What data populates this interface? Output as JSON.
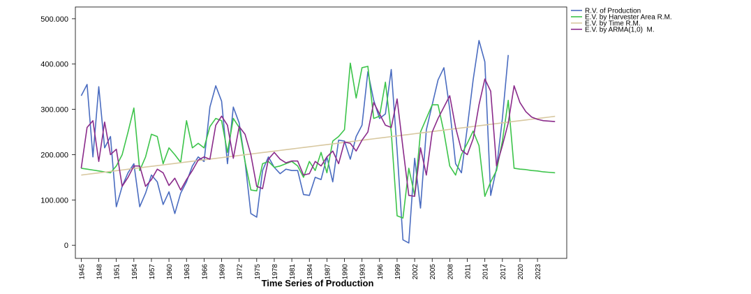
{
  "chart_data": {
    "type": "line",
    "x_label": "Time Series of Production",
    "x": [
      1945,
      1946,
      1947,
      1948,
      1949,
      1950,
      1951,
      1952,
      1953,
      1954,
      1955,
      1956,
      1957,
      1958,
      1959,
      1960,
      1961,
      1962,
      1963,
      1964,
      1965,
      1966,
      1967,
      1968,
      1969,
      1970,
      1971,
      1972,
      1973,
      1974,
      1975,
      1976,
      1977,
      1978,
      1979,
      1980,
      1981,
      1982,
      1983,
      1984,
      1985,
      1986,
      1987,
      1988,
      1989,
      1990,
      1991,
      1992,
      1993,
      1994,
      1995,
      1996,
      1997,
      1998,
      1999,
      2000,
      2001,
      2002,
      2003,
      2004,
      2005,
      2006,
      2007,
      2008,
      2009,
      2010,
      2011,
      2012,
      2013,
      2014,
      2015,
      2016,
      2017,
      2018,
      2019,
      2020,
      2021,
      2022,
      2023,
      2024,
      2025,
      2026
    ],
    "xlim": [
      1944,
      2028
    ],
    "xticks": [
      1945,
      1948,
      1951,
      1954,
      1957,
      1960,
      1963,
      1966,
      1969,
      1972,
      1975,
      1978,
      1981,
      1984,
      1987,
      1990,
      1993,
      1996,
      1999,
      2002,
      2005,
      2008,
      2011,
      2014,
      2017,
      2020,
      2023
    ],
    "ylim": [
      -29,
      526
    ],
    "yticks": [
      0,
      {
        "value": 100,
        "label": "100.000"
      },
      {
        "value": 200,
        "label": "200.000"
      },
      {
        "value": 300,
        "label": "300.000"
      },
      {
        "value": 400,
        "label": "400.000"
      },
      {
        "value": 500,
        "label": "500.000"
      }
    ],
    "grid": false,
    "legend": "outside-top-right",
    "series": [
      {
        "name": "R.V. of Production",
        "color": "#4a6cc0",
        "values": [
          330,
          355,
          195,
          350,
          215,
          240,
          85,
          130,
          160,
          180,
          85,
          115,
          155,
          140,
          90,
          118,
          70,
          115,
          140,
          175,
          195,
          185,
          305,
          352,
          318,
          180,
          305,
          270,
          185,
          70,
          62,
          165,
          195,
          172,
          158,
          168,
          165,
          165,
          112,
          110,
          150,
          145,
          195,
          140,
          232,
          230,
          190,
          240,
          265,
          383,
          320,
          280,
          290,
          388,
          210,
          12,
          5,
          192,
          82,
          255,
          310,
          365,
          392,
          300,
          180,
          160,
          260,
          365,
          452,
          405,
          110,
          170,
          280,
          420,
          null,
          null,
          null,
          null,
          null,
          null,
          null,
          null
        ]
      },
      {
        "name": "E.V. by Harvester Area R.M.",
        "color": "#3cc44a",
        "values": [
          170,
          168,
          166,
          164,
          162,
          160,
          175,
          200,
          250,
          303,
          165,
          195,
          245,
          240,
          180,
          215,
          200,
          183,
          275,
          215,
          225,
          215,
          262,
          280,
          275,
          205,
          280,
          260,
          185,
          122,
          120,
          180,
          185,
          172,
          175,
          180,
          185,
          175,
          150,
          185,
          165,
          205,
          160,
          230,
          240,
          255,
          402,
          325,
          392,
          395,
          280,
          285,
          360,
          250,
          65,
          60,
          170,
          110,
          250,
          280,
          310,
          310,
          250,
          175,
          155,
          200,
          225,
          252,
          220,
          108,
          140,
          165,
          230,
          320,
          170,
          168,
          167,
          165,
          164,
          162,
          161,
          160
        ]
      },
      {
        "name": "E.V. by Time R.M.",
        "color": "#d8c8a0",
        "values": [
          155,
          156.6,
          158.2,
          159.8,
          161.4,
          163,
          164.6,
          166.2,
          167.8,
          169.4,
          171,
          172.6,
          174.2,
          175.8,
          177.4,
          179,
          180.6,
          182.2,
          183.8,
          185.4,
          187,
          188.6,
          190.2,
          191.8,
          193.4,
          195,
          196.6,
          198.2,
          199.8,
          201.4,
          203,
          204.6,
          206.2,
          207.8,
          209.4,
          211,
          212.6,
          214.2,
          215.8,
          217.4,
          219,
          220.6,
          222.2,
          223.8,
          225.4,
          227,
          228.6,
          230.2,
          231.8,
          233.4,
          235,
          236.6,
          238.2,
          239.8,
          241.4,
          243,
          244.6,
          246.2,
          247.8,
          249.4,
          251,
          252.6,
          254.2,
          255.8,
          257.4,
          259,
          260.6,
          262.2,
          263.8,
          265.4,
          267,
          268.6,
          270.2,
          271.8,
          273.4,
          275,
          276.6,
          278.2,
          279.8,
          281.4,
          283,
          284.6
        ]
      },
      {
        "name": "E.V. by ARMA(1,0)  M.",
        "color": "#8a2a8a",
        "values": [
          170,
          260,
          275,
          185,
          272,
          200,
          212,
          130,
          150,
          175,
          175,
          130,
          145,
          168,
          160,
          132,
          148,
          122,
          145,
          165,
          188,
          195,
          190,
          265,
          285,
          265,
          192,
          262,
          245,
          200,
          130,
          125,
          190,
          205,
          190,
          182,
          186,
          186,
          155,
          158,
          185,
          175,
          195,
          208,
          180,
          228,
          225,
          208,
          232,
          250,
          315,
          290,
          265,
          260,
          323,
          215,
          110,
          108,
          215,
          155,
          250,
          280,
          305,
          330,
          260,
          210,
          200,
          235,
          310,
          367,
          340,
          175,
          220,
          270,
          352,
          315,
          295,
          283,
          278,
          275,
          274,
          273
        ]
      }
    ]
  }
}
